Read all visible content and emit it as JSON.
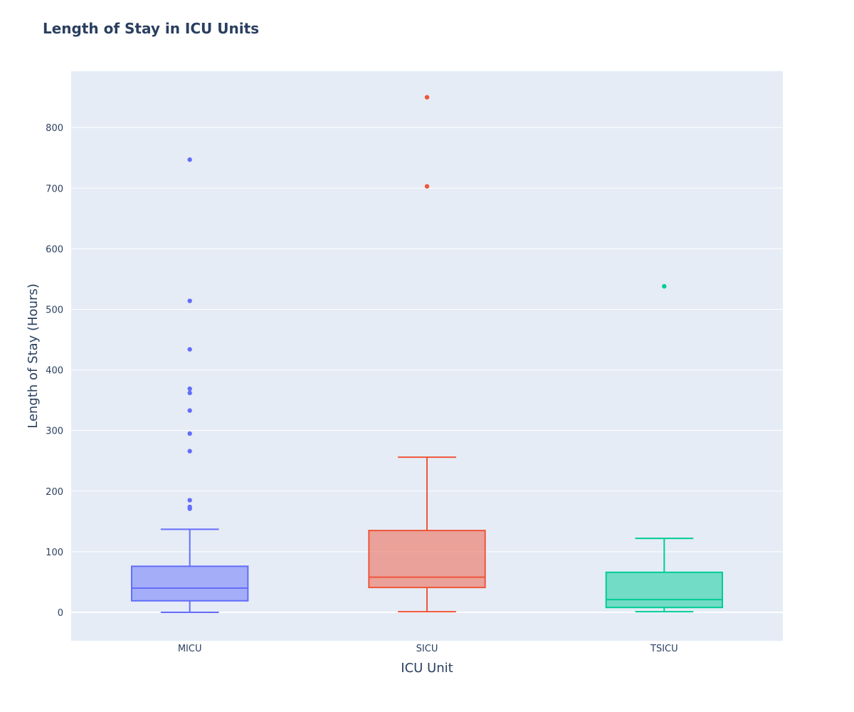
{
  "chart_data": {
    "type": "box",
    "title": "Length of Stay in ICU Units",
    "xlabel": "ICU Unit",
    "ylabel": "Length of Stay (Hours)",
    "ylim": [
      -47,
      893
    ],
    "yticks": [
      0,
      100,
      200,
      300,
      400,
      500,
      600,
      700,
      800
    ],
    "grid": true,
    "legend": "none",
    "plot_bg": "#e5ecf6",
    "categories": [
      "MICU",
      "SICU",
      "TSICU"
    ],
    "series": [
      {
        "category": "MICU",
        "color": "#636efa",
        "fill": "rgba(99,110,250,0.5)",
        "min": 0,
        "q1": 19,
        "median": 40,
        "q3": 76,
        "max": 137,
        "outliers": [
          747,
          514,
          434,
          369,
          362,
          333,
          295,
          266,
          185,
          174,
          171
        ]
      },
      {
        "category": "SICU",
        "color": "#ef553b",
        "fill": "rgba(239,85,59,0.5)",
        "min": 1,
        "q1": 41,
        "median": 58,
        "q3": 135,
        "max": 256,
        "outliers": [
          850,
          703
        ]
      },
      {
        "category": "TSICU",
        "color": "#00cc96",
        "fill": "rgba(0,204,150,0.5)",
        "min": 1,
        "q1": 8,
        "median": 21,
        "q3": 66,
        "max": 122,
        "outliers": [
          538
        ]
      }
    ]
  }
}
